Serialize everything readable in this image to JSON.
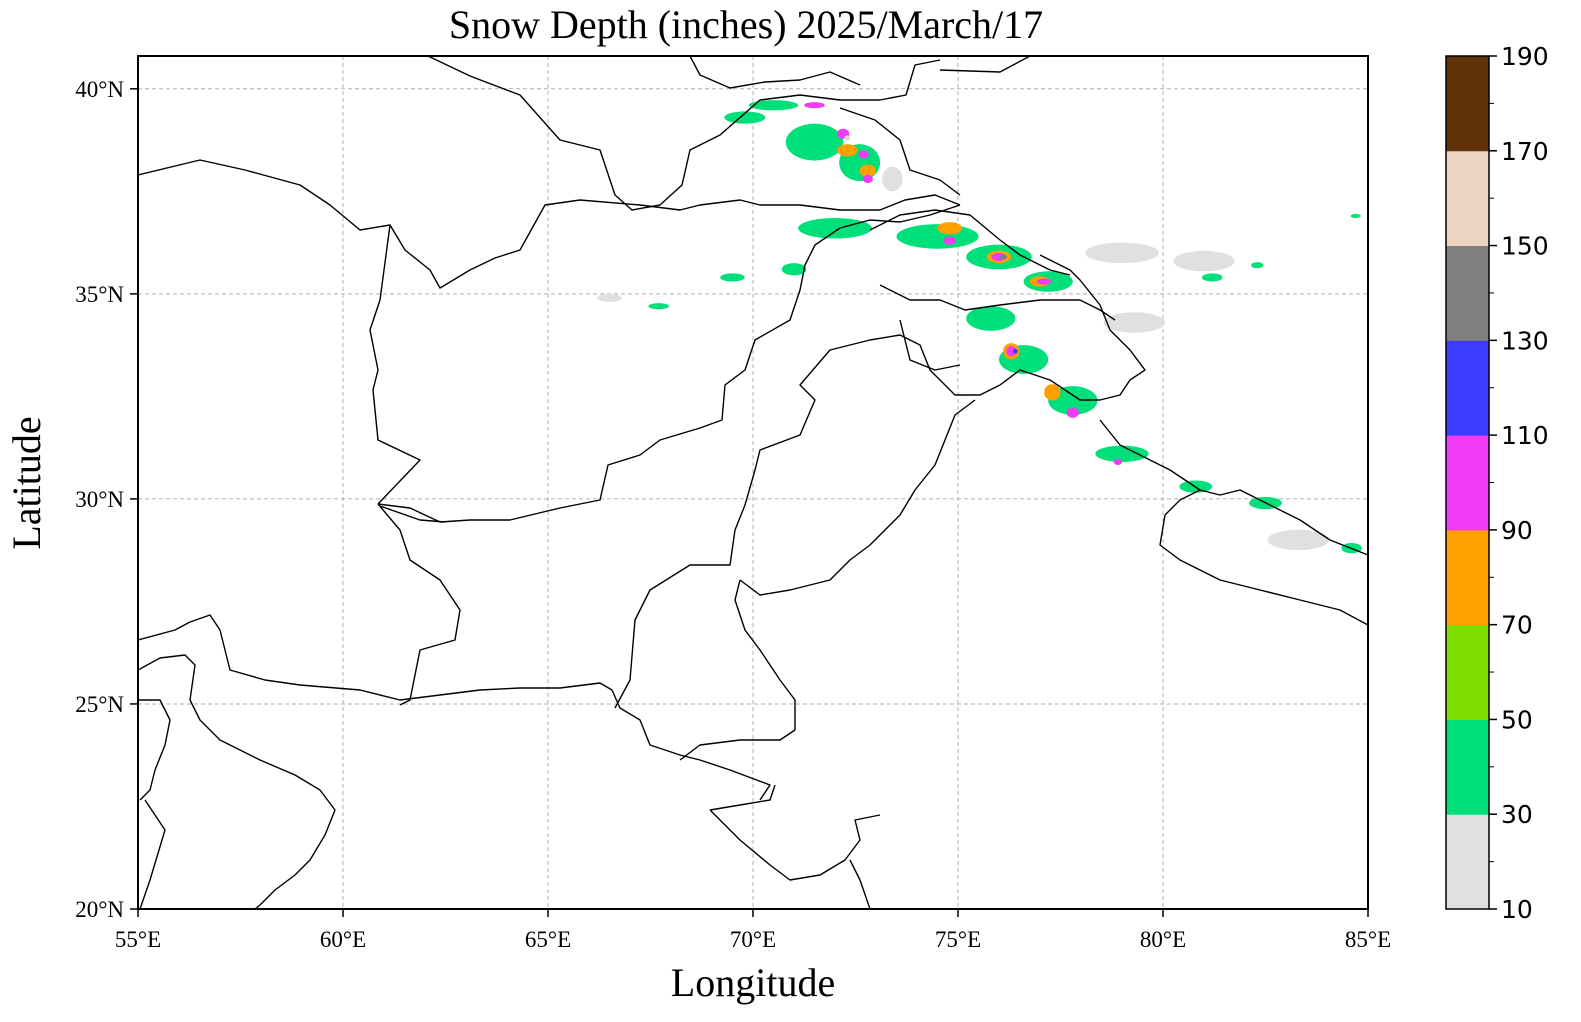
{
  "title": "Snow Depth (inches) 2025/March/17",
  "map": {
    "xlabel": "Longitude",
    "ylabel": "Latitude",
    "lon_range": [
      55,
      85
    ],
    "lat_range": [
      20,
      40.8
    ],
    "lon_ticks": [
      55,
      60,
      65,
      70,
      75,
      80,
      85
    ],
    "lon_tick_labels": [
      "55°E",
      "60°E",
      "65°E",
      "70°E",
      "75°E",
      "80°E",
      "85°E"
    ],
    "lat_ticks": [
      20,
      25,
      30,
      35,
      40
    ],
    "lat_tick_labels": [
      "20°N",
      "25°N",
      "30°N",
      "35°N",
      "40°N"
    ],
    "grid": true,
    "grid_color": "#b0b0b0"
  },
  "colorbar": {
    "levels": [
      10,
      30,
      50,
      70,
      90,
      110,
      130,
      150,
      170,
      190
    ],
    "tick_labels": [
      "10",
      "30",
      "50",
      "70",
      "90",
      "110",
      "130",
      "150",
      "170",
      "190"
    ],
    "colors": [
      "#e0e0e0",
      "#00e07a",
      "#80dd00",
      "#ffa000",
      "#f03cf5",
      "#3c3cff",
      "#808080",
      "#ecd5c0",
      "#62330a"
    ],
    "placement": "right"
  },
  "snow_cells": [
    [
      70.5,
      39.6,
      1.2,
      0.25,
      1
    ],
    [
      69.8,
      39.3,
      1.0,
      0.3,
      1
    ],
    [
      71.5,
      38.7,
      1.4,
      0.9,
      1
    ],
    [
      72.6,
      38.2,
      1.0,
      0.9,
      1
    ],
    [
      73.4,
      37.8,
      0.5,
      0.6,
      0
    ],
    [
      72.0,
      36.6,
      1.8,
      0.5,
      1
    ],
    [
      74.5,
      36.4,
      2.0,
      0.6,
      1
    ],
    [
      76.0,
      35.9,
      1.6,
      0.6,
      1
    ],
    [
      77.2,
      35.3,
      1.2,
      0.5,
      1
    ],
    [
      75.8,
      34.4,
      1.2,
      0.6,
      1
    ],
    [
      76.6,
      33.4,
      1.2,
      0.7,
      1
    ],
    [
      77.8,
      32.4,
      1.2,
      0.7,
      1
    ],
    [
      79.0,
      31.1,
      1.3,
      0.4,
      1
    ],
    [
      80.8,
      30.3,
      0.8,
      0.3,
      1
    ],
    [
      82.5,
      29.9,
      0.8,
      0.3,
      1
    ],
    [
      84.6,
      28.8,
      0.5,
      0.25,
      1
    ],
    [
      81.2,
      35.4,
      0.5,
      0.2,
      1
    ],
    [
      82.3,
      35.7,
      0.3,
      0.15,
      1
    ],
    [
      69.5,
      35.4,
      0.6,
      0.2,
      1
    ],
    [
      67.7,
      34.7,
      0.5,
      0.15,
      1
    ],
    [
      71.0,
      35.6,
      0.6,
      0.3,
      1
    ],
    [
      79.0,
      36.0,
      1.8,
      0.5,
      0
    ],
    [
      79.3,
      34.3,
      1.5,
      0.5,
      0
    ],
    [
      81.0,
      35.8,
      1.5,
      0.5,
      0
    ],
    [
      83.3,
      29.0,
      1.5,
      0.5,
      0
    ],
    [
      66.5,
      34.9,
      0.6,
      0.2,
      0
    ],
    [
      84.7,
      36.9,
      0.25,
      0.1,
      1
    ],
    [
      72.3,
      38.5,
      0.5,
      0.3,
      3
    ],
    [
      72.8,
      38.0,
      0.4,
      0.3,
      3
    ],
    [
      74.8,
      36.6,
      0.6,
      0.3,
      3
    ],
    [
      76.0,
      35.9,
      0.6,
      0.3,
      3
    ],
    [
      77.0,
      35.3,
      0.5,
      0.25,
      3
    ],
    [
      76.3,
      33.6,
      0.4,
      0.4,
      3
    ],
    [
      77.3,
      32.6,
      0.4,
      0.4,
      3
    ],
    [
      71.5,
      39.6,
      0.5,
      0.15,
      4
    ],
    [
      72.2,
      38.9,
      0.3,
      0.25,
      4
    ],
    [
      72.7,
      38.4,
      0.25,
      0.2,
      4
    ],
    [
      72.8,
      37.8,
      0.25,
      0.2,
      4
    ],
    [
      74.8,
      36.3,
      0.3,
      0.2,
      4
    ],
    [
      76.0,
      35.9,
      0.35,
      0.2,
      4
    ],
    [
      77.1,
      35.3,
      0.35,
      0.15,
      4
    ],
    [
      76.3,
      33.6,
      0.25,
      0.25,
      4
    ],
    [
      77.8,
      32.1,
      0.3,
      0.25,
      4
    ],
    [
      78.9,
      30.9,
      0.2,
      0.15,
      4
    ],
    [
      76.4,
      33.6,
      0.12,
      0.12,
      5
    ],
    [
      72.3,
      38.8,
      0.15,
      0.12,
      7
    ],
    [
      76.1,
      35.9,
      0.2,
      0.12,
      6
    ]
  ]
}
